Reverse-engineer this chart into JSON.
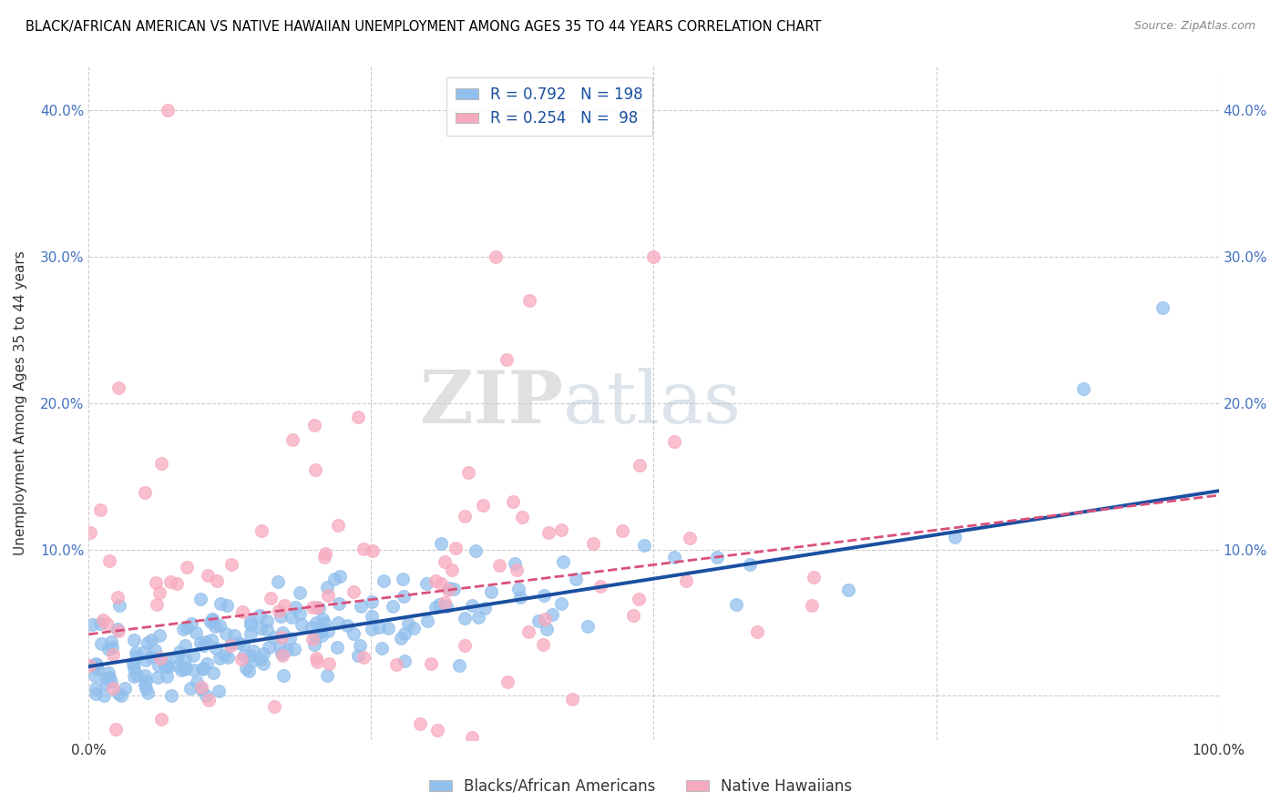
{
  "title": "BLACK/AFRICAN AMERICAN VS NATIVE HAWAIIAN UNEMPLOYMENT AMONG AGES 35 TO 44 YEARS CORRELATION CHART",
  "source": "Source: ZipAtlas.com",
  "ylabel": "Unemployment Among Ages 35 to 44 years",
  "xlim": [
    0,
    1.0
  ],
  "ylim": [
    -0.03,
    0.43
  ],
  "yticks": [
    0.0,
    0.1,
    0.2,
    0.3,
    0.4
  ],
  "yticklabels": [
    "",
    "10.0%",
    "20.0%",
    "30.0%",
    "40.0%"
  ],
  "blue_color": "#92C0ED",
  "pink_color": "#F7AABF",
  "blue_line_color": "#1A4FA0",
  "pink_line_color": "#D9507A",
  "grid_color": "#CCCCCC",
  "watermark_zip": "ZIP",
  "watermark_atlas": "atlas",
  "R_blue": 0.792,
  "N_blue": 198,
  "R_pink": 0.254,
  "N_pink": 98,
  "legend_label_blue": "Blacks/African Americans",
  "legend_label_pink": "Native Hawaiians"
}
